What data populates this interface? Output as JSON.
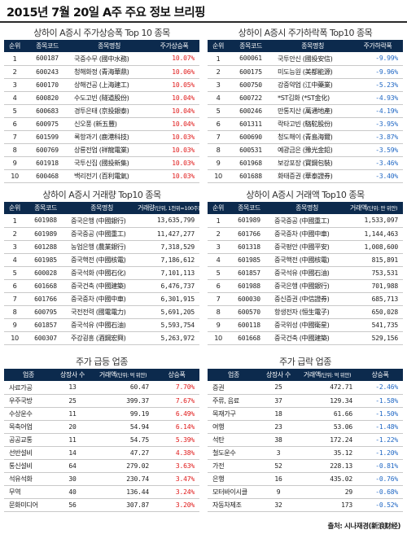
{
  "page_title": "2015년 7월 20일 A주 주요 정보 브리핑",
  "source": "출처: 시나재경(新浪财经)",
  "colors": {
    "header_bg": "#0c2a4d",
    "rise": "#e01818",
    "fall": "#1f67c4"
  },
  "top_gainers": {
    "title": "상하이 A증시 주가상승폭 Top 10 종목",
    "headers": [
      "순위",
      "종목코드",
      "종목명칭",
      "주가상승폭"
    ],
    "rows": [
      {
        "rank": "1",
        "code": "600187",
        "name": "국중수무 (國中水務)",
        "value": "10.07%"
      },
      {
        "rank": "2",
        "code": "600243",
        "name": "청해화정 (青海華鼎)",
        "value": "10.06%"
      },
      {
        "rank": "3",
        "code": "600170",
        "name": "상해건공 (上海建工)",
        "value": "10.05%"
      },
      {
        "rank": "4",
        "code": "600820",
        "name": "수도고빈 (隧道股份)",
        "value": "10.04%"
      },
      {
        "rank": "5",
        "code": "600683",
        "name": "경투은태 (京投銀泰)",
        "value": "10.04%"
      },
      {
        "rank": "6",
        "code": "600975",
        "name": "신오풍 (新五豐)",
        "value": "10.04%"
      },
      {
        "rank": "7",
        "code": "601599",
        "name": "록항과기 (鹿港科技)",
        "value": "10.03%"
      },
      {
        "rank": "8",
        "code": "600769",
        "name": "상룡전업 (祥龍電業)",
        "value": "10.03%"
      },
      {
        "rank": "9",
        "code": "601918",
        "name": "국투신집 (國投新集)",
        "value": "10.03%"
      },
      {
        "rank": "10",
        "code": "600468",
        "name": "백리전기 (百利電氣)",
        "value": "10.03%"
      }
    ]
  },
  "top_losers": {
    "title": "상하이 A증시 주가하락폭 Top10 종목",
    "headers": [
      "순위",
      "종목코드",
      "종목명칭",
      "주가하락폭"
    ],
    "rows": [
      {
        "rank": "1",
        "code": "600061",
        "name": "국투안신 (國投安信)",
        "value": "-9.99%"
      },
      {
        "rank": "2",
        "code": "600175",
        "name": "미도능원 (美都能源)",
        "value": "-9.96%"
      },
      {
        "rank": "3",
        "code": "600750",
        "name": "강중약업 (江中藥業)",
        "value": "-5.23%"
      },
      {
        "rank": "4",
        "code": "600722",
        "name": "*ST김화 (*ST金化)",
        "value": "-4.93%"
      },
      {
        "rank": "5",
        "code": "600246",
        "name": "만통지산 (萬通地產)",
        "value": "-4.19%"
      },
      {
        "rank": "6",
        "code": "601311",
        "name": "락타고빈 (駱駝股份)",
        "value": "-3.95%"
      },
      {
        "rank": "7",
        "code": "600690",
        "name": "청도해이 (青島海爾)",
        "value": "-3.87%"
      },
      {
        "rank": "8",
        "code": "600531",
        "name": "예광금은 (豫光金鉛)",
        "value": "-3.59%"
      },
      {
        "rank": "9",
        "code": "601968",
        "name": "보강포장 (寶鋼包裝)",
        "value": "-3.46%"
      },
      {
        "rank": "10",
        "code": "601688",
        "name": "화태증권 (華泰證券)",
        "value": "-3.40%"
      }
    ]
  },
  "top_volume": {
    "title": "상하이 A증시 거래량 Top10 종목",
    "headers": [
      "순위",
      "종목코드",
      "종목명칭",
      "거래량"
    ],
    "unit": "(단위, 1천위=100주)",
    "rows": [
      {
        "rank": "1",
        "code": "601988",
        "name": "중국은행 (中國銀行)",
        "value": "13,635,799"
      },
      {
        "rank": "2",
        "code": "601989",
        "name": "중국중공 (中國重工)",
        "value": "11,427,277"
      },
      {
        "rank": "3",
        "code": "601288",
        "name": "농업은행 (農業銀行)",
        "value": "7,318,529"
      },
      {
        "rank": "4",
        "code": "601985",
        "name": "중국핵전 (中國核電)",
        "value": "7,186,612"
      },
      {
        "rank": "5",
        "code": "600028",
        "name": "중국석화 (中國石化)",
        "value": "7,101,113"
      },
      {
        "rank": "6",
        "code": "601668",
        "name": "중국건축 (中國建築)",
        "value": "6,476,737"
      },
      {
        "rank": "7",
        "code": "601766",
        "name": "중국중차 (中國中車)",
        "value": "6,301,915"
      },
      {
        "rank": "8",
        "code": "600795",
        "name": "국전전력 (國電電力)",
        "value": "5,691,205"
      },
      {
        "rank": "9",
        "code": "601857",
        "name": "중국석유 (中國石油)",
        "value": "5,593,754"
      },
      {
        "rank": "10",
        "code": "600307",
        "name": "주강굉흥 (酒鋼宏興)",
        "value": "5,263,972"
      }
    ]
  },
  "top_amount": {
    "title": "상하이 A증시 거래액 Top10 종목",
    "headers": [
      "순위",
      "종목코드",
      "종목명칭",
      "거래액"
    ],
    "unit": "(단위: 만 위안)",
    "rows": [
      {
        "rank": "1",
        "code": "601989",
        "name": "중국중공 (中國重工)",
        "value": "1,533,097"
      },
      {
        "rank": "2",
        "code": "601766",
        "name": "중국중차 (中國中車)",
        "value": "1,144,463"
      },
      {
        "rank": "3",
        "code": "601318",
        "name": "중국평안 (中國平安)",
        "value": "1,008,600"
      },
      {
        "rank": "4",
        "code": "601985",
        "name": "중국핵전 (中國核電)",
        "value": "815,891"
      },
      {
        "rank": "5",
        "code": "601857",
        "name": "중국석유 (中國石油)",
        "value": "753,531"
      },
      {
        "rank": "6",
        "code": "601988",
        "name": "중국은행 (中國銀行)",
        "value": "701,988"
      },
      {
        "rank": "7",
        "code": "600030",
        "name": "중신증권 (中信證券)",
        "value": "685,713"
      },
      {
        "rank": "8",
        "code": "600570",
        "name": "항생전자 (恒生電子)",
        "value": "650,028"
      },
      {
        "rank": "9",
        "code": "600118",
        "name": "중국위성 (中國衛星)",
        "value": "541,735"
      },
      {
        "rank": "10",
        "code": "601668",
        "name": "중국건축 (中國建築)",
        "value": "529,156"
      }
    ]
  },
  "sector_gainers": {
    "title": "주가 급등 업종",
    "headers": [
      "업종",
      "상장사 수",
      "거래액",
      "상승폭"
    ],
    "unit": "(단위: 억 위안)",
    "rows": [
      {
        "sector": "사료가공",
        "count": "13",
        "amount": "60.47",
        "change": "7.70%"
      },
      {
        "sector": "우주국방",
        "count": "25",
        "amount": "399.37",
        "change": "7.67%"
      },
      {
        "sector": "수상운수",
        "count": "11",
        "amount": "99.19",
        "change": "6.49%"
      },
      {
        "sector": "목축어업",
        "count": "20",
        "amount": "54.94",
        "change": "6.14%"
      },
      {
        "sector": "공공교통",
        "count": "11",
        "amount": "54.75",
        "change": "5.39%"
      },
      {
        "sector": "선반설비",
        "count": "14",
        "amount": "47.27",
        "change": "4.38%"
      },
      {
        "sector": "통신설비",
        "count": "64",
        "amount": "279.02",
        "change": "3.63%"
      },
      {
        "sector": "석유석화",
        "count": "30",
        "amount": "230.74",
        "change": "3.47%"
      },
      {
        "sector": "무역",
        "count": "40",
        "amount": "136.44",
        "change": "3.24%"
      },
      {
        "sector": "문화미디어",
        "count": "56",
        "amount": "307.87",
        "change": "3.20%"
      }
    ]
  },
  "sector_losers": {
    "title": "주가 급락 업종",
    "headers": [
      "업종",
      "상장사 수",
      "거래액",
      "상승폭"
    ],
    "unit": "(단위: 억 위안)",
    "rows": [
      {
        "sector": "증권",
        "count": "25",
        "amount": "472.71",
        "change": "-2.46%"
      },
      {
        "sector": "주류, 음료",
        "count": "37",
        "amount": "129.34",
        "change": "-1.58%"
      },
      {
        "sector": "목재가구",
        "count": "18",
        "amount": "61.66",
        "change": "-1.50%"
      },
      {
        "sector": "여행",
        "count": "23",
        "amount": "53.06",
        "change": "-1.48%"
      },
      {
        "sector": "석탄",
        "count": "38",
        "amount": "172.24",
        "change": "-1.22%"
      },
      {
        "sector": "철도운수",
        "count": "3",
        "amount": "35.12",
        "change": "-1.20%"
      },
      {
        "sector": "가전",
        "count": "52",
        "amount": "228.13",
        "change": "-0.81%"
      },
      {
        "sector": "은행",
        "count": "16",
        "amount": "435.02",
        "change": "-0.76%"
      },
      {
        "sector": "모터바이시클",
        "count": "9",
        "amount": "29",
        "change": "-0.68%"
      },
      {
        "sector": "자동차제조",
        "count": "32",
        "amount": "173",
        "change": "-0.52%"
      }
    ]
  }
}
